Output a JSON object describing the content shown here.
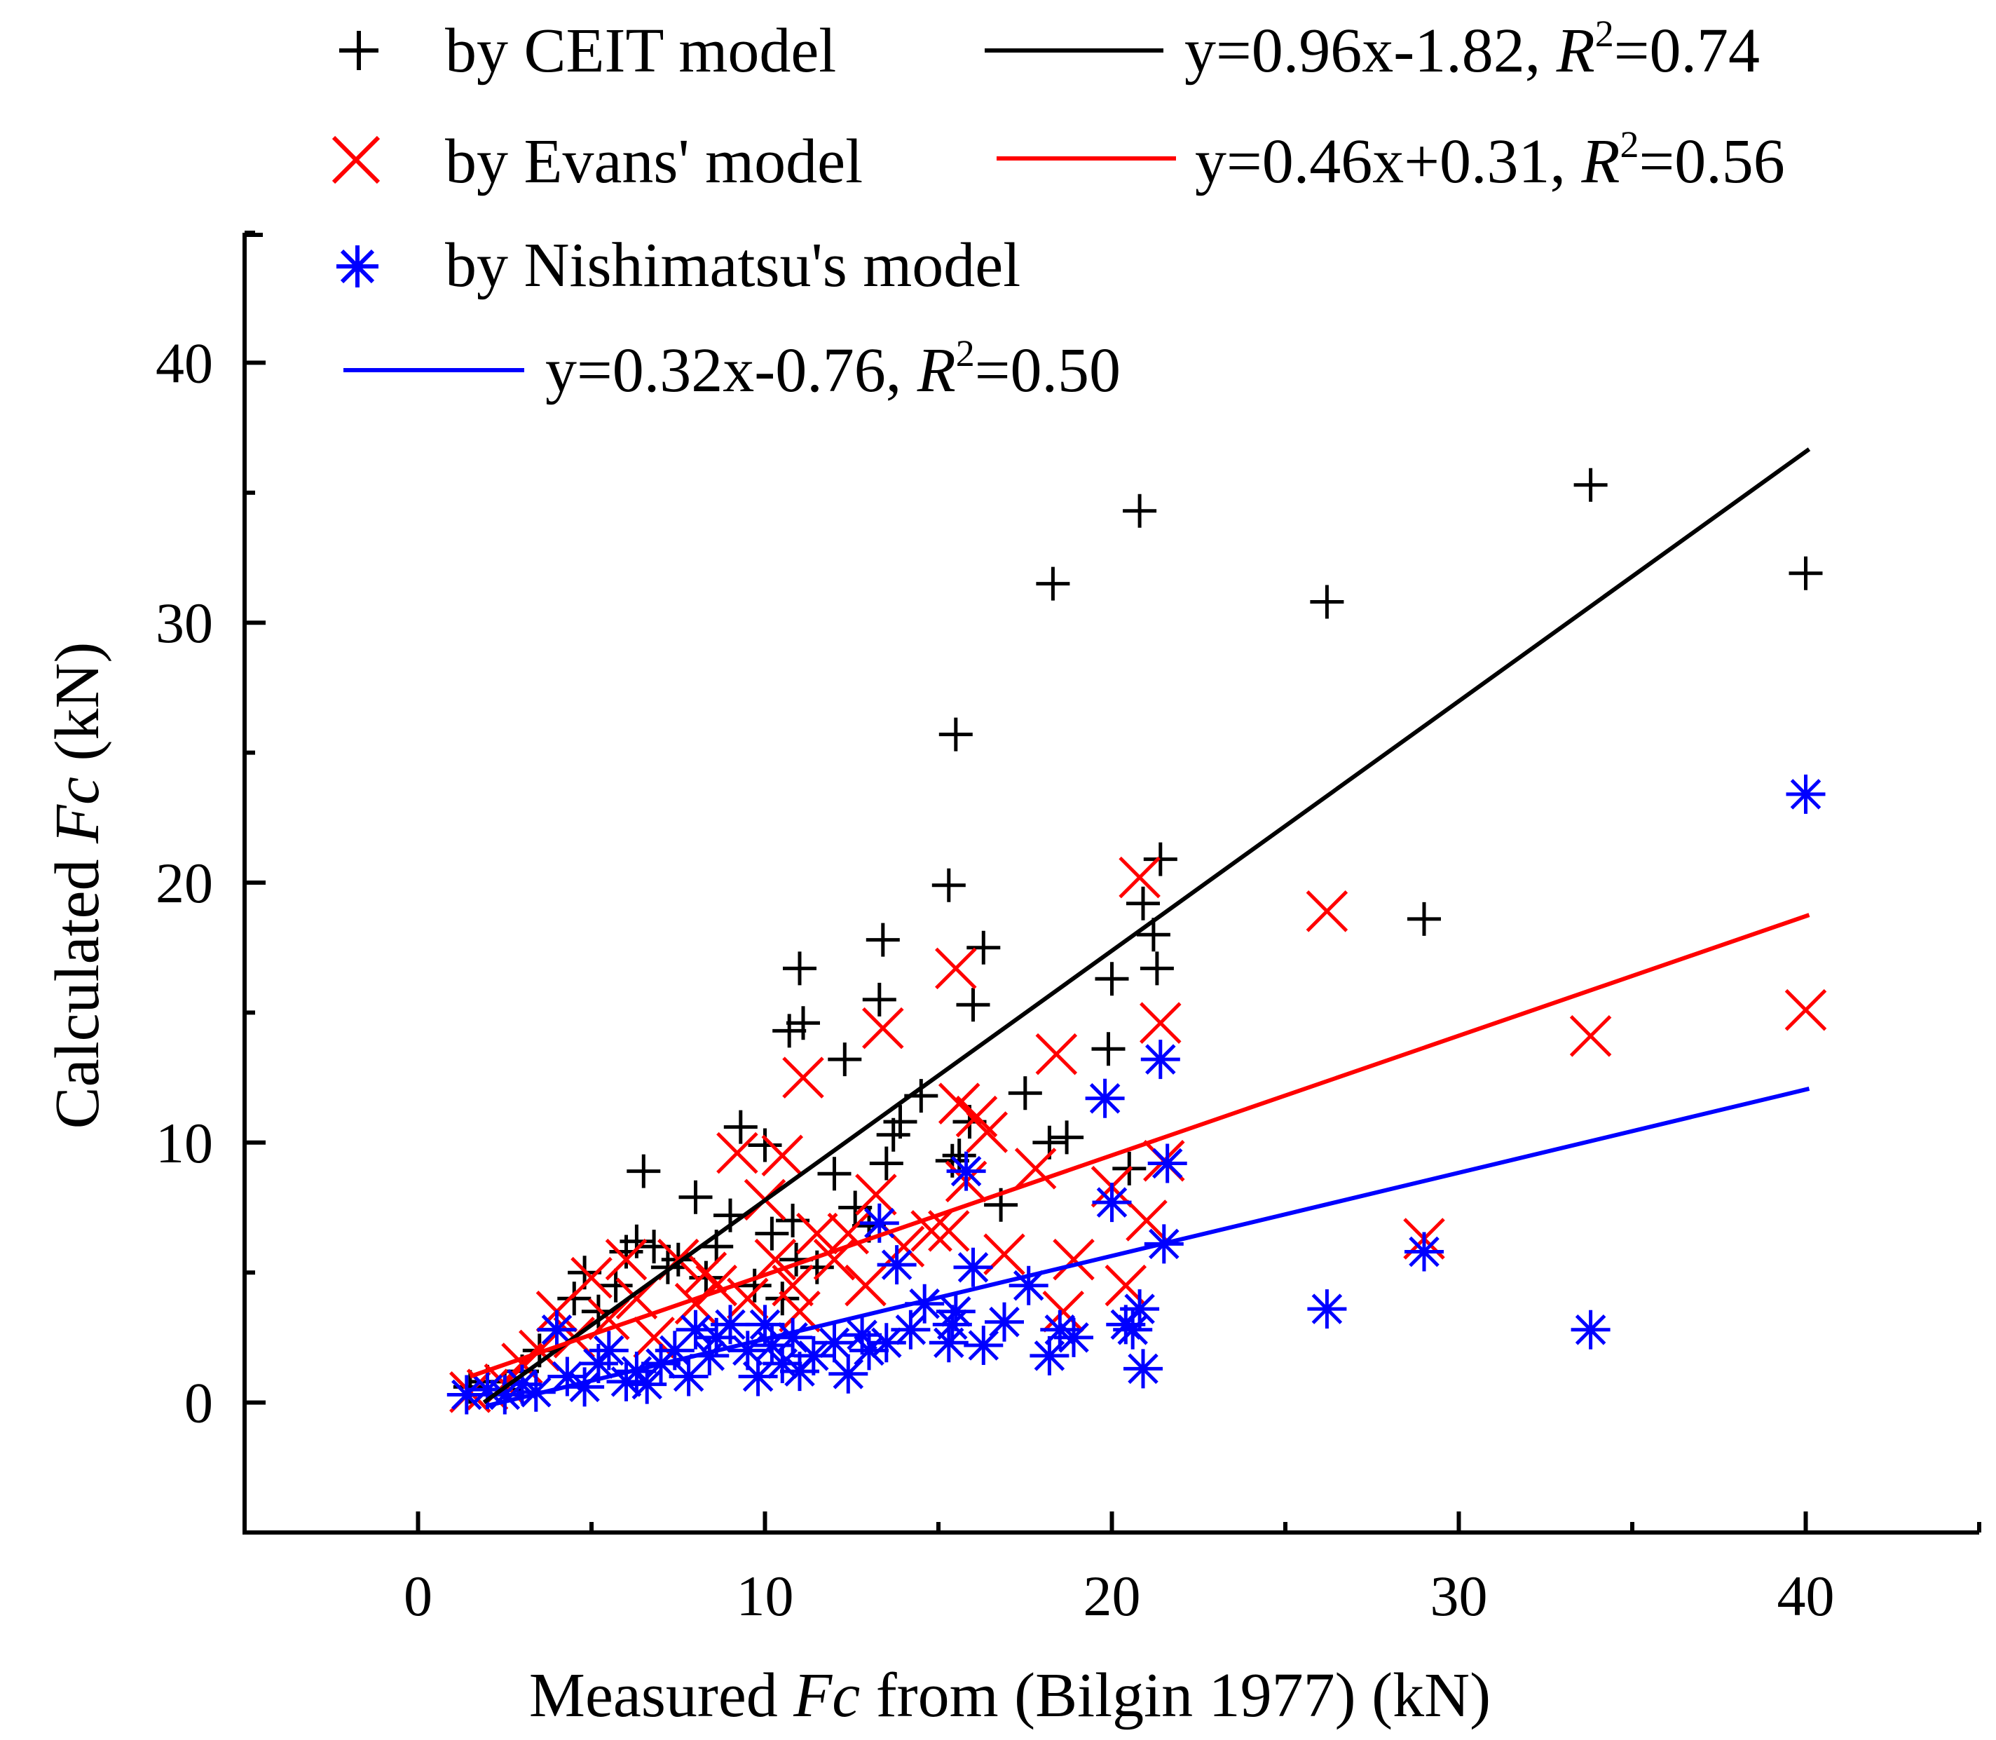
{
  "chart_data": {
    "type": "scatter",
    "xlabel": {
      "prefix": "Measured ",
      "italic": "Fc",
      "suffix": " from (Bilgin 1977) (kN)"
    },
    "ylabel": {
      "prefix": "Calculated ",
      "italic": "Fc",
      "suffix": " (kN)"
    },
    "xlim": [
      -5,
      45
    ],
    "ylim": [
      -5,
      45
    ],
    "xticks": [
      0,
      10,
      20,
      30,
      40
    ],
    "yticks": [
      0,
      10,
      20,
      30,
      40
    ],
    "xtick_labels": [
      "0",
      "10",
      "20",
      "30",
      "40"
    ],
    "ytick_labels": [
      "0",
      "10",
      "20",
      "30",
      "40"
    ],
    "grid": false,
    "series": [
      {
        "name": "by CEIT model",
        "marker": "plus",
        "color": "#000000",
        "fit": {
          "text": "y=0.96x-1.82, ",
          "r2_value": "=0.74",
          "slope": 0.96,
          "intercept": -1.82,
          "x_range": [
            1.9,
            40.1
          ]
        },
        "points": [
          [
            1.5,
            0.6
          ],
          [
            2.0,
            0.8
          ],
          [
            2.5,
            0.5
          ],
          [
            3.0,
            1.2
          ],
          [
            3.5,
            2.0
          ],
          [
            4.0,
            2.8
          ],
          [
            4.5,
            4.0
          ],
          [
            4.8,
            5.0
          ],
          [
            5.2,
            3.5
          ],
          [
            5.7,
            4.5
          ],
          [
            6.0,
            5.8
          ],
          [
            6.3,
            6.2
          ],
          [
            6.5,
            8.9
          ],
          [
            6.8,
            6.0
          ],
          [
            7.2,
            5.2
          ],
          [
            7.5,
            5.5
          ],
          [
            8.0,
            7.9
          ],
          [
            8.3,
            4.8
          ],
          [
            8.6,
            6.0
          ],
          [
            9.0,
            7.2
          ],
          [
            9.3,
            10.6
          ],
          [
            9.7,
            4.5
          ],
          [
            10.0,
            9.9
          ],
          [
            10.2,
            6.5
          ],
          [
            10.5,
            4.0
          ],
          [
            10.7,
            14.3
          ],
          [
            10.8,
            7.0
          ],
          [
            10.9,
            5.5
          ],
          [
            11.0,
            16.7
          ],
          [
            11.1,
            14.6
          ],
          [
            11.5,
            5.2
          ],
          [
            12.0,
            8.8
          ],
          [
            12.3,
            13.2
          ],
          [
            12.6,
            7.5
          ],
          [
            13.0,
            6.8
          ],
          [
            13.3,
            15.5
          ],
          [
            13.4,
            17.8
          ],
          [
            13.5,
            9.2
          ],
          [
            13.7,
            10.3
          ],
          [
            13.9,
            10.8
          ],
          [
            14.5,
            11.8
          ],
          [
            15.3,
            19.9
          ],
          [
            15.4,
            9.3
          ],
          [
            15.5,
            25.7
          ],
          [
            15.6,
            9.5
          ],
          [
            15.9,
            10.8
          ],
          [
            16.0,
            15.3
          ],
          [
            16.3,
            17.5
          ],
          [
            16.8,
            7.6
          ],
          [
            17.5,
            11.9
          ],
          [
            18.2,
            10.0
          ],
          [
            18.3,
            31.5
          ],
          [
            18.7,
            10.2
          ],
          [
            19.9,
            13.6
          ],
          [
            20.0,
            16.3
          ],
          [
            20.5,
            9.0
          ],
          [
            20.8,
            34.3
          ],
          [
            20.9,
            19.2
          ],
          [
            21.2,
            18.0
          ],
          [
            21.3,
            16.7
          ],
          [
            21.4,
            20.9
          ],
          [
            26.2,
            30.8
          ],
          [
            29.0,
            18.6
          ],
          [
            33.8,
            35.3
          ],
          [
            40.0,
            31.9
          ]
        ]
      },
      {
        "name": "by Evans' model",
        "marker": "x",
        "color": "#ff0000",
        "fit": {
          "text": "y=0.46x+0.31, ",
          "r2_value": "=0.56",
          "slope": 0.46,
          "intercept": 0.31,
          "x_range": [
            1.5,
            40.1
          ]
        },
        "points": [
          [
            1.5,
            0.4
          ],
          [
            2.0,
            0.5
          ],
          [
            2.5,
            0.7
          ],
          [
            3.0,
            1.5
          ],
          [
            3.5,
            2.0
          ],
          [
            4.0,
            3.5
          ],
          [
            4.5,
            2.5
          ],
          [
            5.0,
            4.8
          ],
          [
            5.5,
            3.2
          ],
          [
            6.0,
            5.5
          ],
          [
            6.3,
            4.0
          ],
          [
            6.8,
            2.5
          ],
          [
            7.5,
            5.5
          ],
          [
            8.0,
            3.8
          ],
          [
            8.3,
            5.0
          ],
          [
            8.6,
            4.5
          ],
          [
            9.2,
            9.6
          ],
          [
            9.5,
            4.0
          ],
          [
            10.0,
            7.8
          ],
          [
            10.3,
            5.5
          ],
          [
            10.5,
            9.5
          ],
          [
            10.8,
            4.5
          ],
          [
            11.0,
            3.5
          ],
          [
            11.1,
            12.5
          ],
          [
            11.5,
            6.5
          ],
          [
            12.0,
            5.5
          ],
          [
            12.4,
            6.5
          ],
          [
            12.9,
            4.5
          ],
          [
            13.2,
            8.0
          ],
          [
            13.4,
            14.4
          ],
          [
            14.0,
            6.0
          ],
          [
            14.8,
            6.6
          ],
          [
            15.3,
            6.6
          ],
          [
            15.5,
            16.7
          ],
          [
            15.6,
            11.5
          ],
          [
            15.8,
            8.5
          ],
          [
            16.1,
            11.0
          ],
          [
            16.4,
            10.4
          ],
          [
            16.9,
            5.7
          ],
          [
            17.8,
            9.0
          ],
          [
            18.4,
            13.4
          ],
          [
            18.6,
            3.5
          ],
          [
            18.9,
            5.5
          ],
          [
            20.0,
            8.3
          ],
          [
            20.4,
            4.5
          ],
          [
            20.8,
            20.2
          ],
          [
            21.0,
            7.0
          ],
          [
            21.4,
            14.6
          ],
          [
            21.5,
            9.3
          ],
          [
            26.2,
            18.9
          ],
          [
            29.0,
            6.3
          ],
          [
            33.8,
            14.1
          ],
          [
            40.0,
            15.1
          ]
        ]
      },
      {
        "name": "by Nishimatsu's model",
        "marker": "asterisk",
        "color": "#0000ff",
        "fit": {
          "text": "y=0.32x-0.76, ",
          "r2_value": "=0.50",
          "slope": 0.32,
          "intercept": -0.76,
          "x_range": [
            2.0,
            40.1
          ]
        },
        "points": [
          [
            1.4,
            0.3
          ],
          [
            2.0,
            0.5
          ],
          [
            2.5,
            0.3
          ],
          [
            3.0,
            0.7
          ],
          [
            3.4,
            0.4
          ],
          [
            4.0,
            2.8
          ],
          [
            4.3,
            1.0
          ],
          [
            4.8,
            0.6
          ],
          [
            5.2,
            1.5
          ],
          [
            5.5,
            2.0
          ],
          [
            6.0,
            0.8
          ],
          [
            6.3,
            1.2
          ],
          [
            6.6,
            0.7
          ],
          [
            7.0,
            1.5
          ],
          [
            7.4,
            2.0
          ],
          [
            7.8,
            1.0
          ],
          [
            8.0,
            2.8
          ],
          [
            8.4,
            1.8
          ],
          [
            8.6,
            2.5
          ],
          [
            9.0,
            3.0
          ],
          [
            9.5,
            2.0
          ],
          [
            9.8,
            1.0
          ],
          [
            10.0,
            3.0
          ],
          [
            10.2,
            2.2
          ],
          [
            10.5,
            1.5
          ],
          [
            10.8,
            2.5
          ],
          [
            11.0,
            1.2
          ],
          [
            11.4,
            1.8
          ],
          [
            12.0,
            2.3
          ],
          [
            12.4,
            1.1
          ],
          [
            12.8,
            2.6
          ],
          [
            13.0,
            2.0
          ],
          [
            13.3,
            6.9
          ],
          [
            13.5,
            2.3
          ],
          [
            13.8,
            5.3
          ],
          [
            14.2,
            2.8
          ],
          [
            14.6,
            3.8
          ],
          [
            15.3,
            2.3
          ],
          [
            15.4,
            3.0
          ],
          [
            15.5,
            3.5
          ],
          [
            15.8,
            8.9
          ],
          [
            16.0,
            5.2
          ],
          [
            16.3,
            2.2
          ],
          [
            16.9,
            3.1
          ],
          [
            17.6,
            4.5
          ],
          [
            18.2,
            1.8
          ],
          [
            18.5,
            2.8
          ],
          [
            18.9,
            2.5
          ],
          [
            19.8,
            11.7
          ],
          [
            20.0,
            7.7
          ],
          [
            20.4,
            3.0
          ],
          [
            20.6,
            2.8
          ],
          [
            20.8,
            3.6
          ],
          [
            20.9,
            1.3
          ],
          [
            21.4,
            13.2
          ],
          [
            21.5,
            6.1
          ],
          [
            21.6,
            9.2
          ],
          [
            26.2,
            3.6
          ],
          [
            29.0,
            5.8
          ],
          [
            33.8,
            2.8
          ],
          [
            40.0,
            23.4
          ]
        ]
      }
    ]
  }
}
